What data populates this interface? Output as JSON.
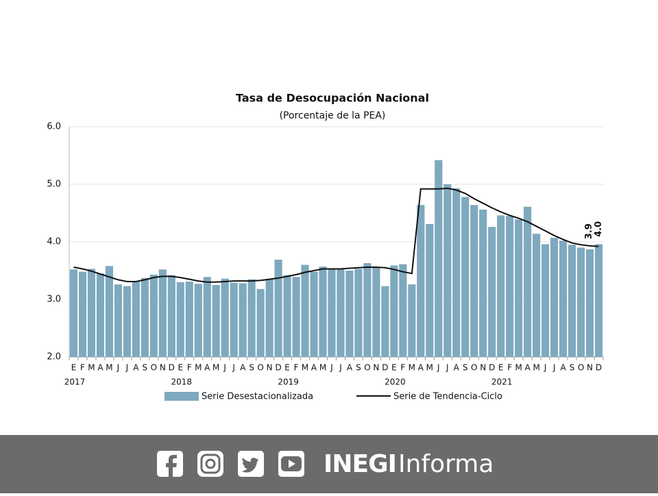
{
  "chart_data": {
    "type": "bar",
    "title": "Tasa de Desocupación Nacional",
    "subtitle": "(Porcentaje de la PEA)",
    "categories": [
      "E",
      "F",
      "M",
      "A",
      "M",
      "J",
      "J",
      "A",
      "S",
      "O",
      "N",
      "D",
      "E",
      "F",
      "M",
      "A",
      "M",
      "J",
      "J",
      "A",
      "S",
      "O",
      "N",
      "D",
      "E",
      "F",
      "M",
      "A",
      "M",
      "J",
      "J",
      "A",
      "S",
      "O",
      "N",
      "D",
      "E",
      "F",
      "M",
      "A",
      "M",
      "J",
      "J",
      "A",
      "S",
      "O",
      "N",
      "D",
      "E",
      "F",
      "M",
      "A",
      "M",
      "J",
      "J",
      "A",
      "S",
      "O",
      "N",
      "D"
    ],
    "year_labels": [
      "2017",
      "2018",
      "2019",
      "2020",
      "2021"
    ],
    "series": [
      {
        "name": "Serie Desestacionalizada",
        "type": "bar",
        "color": "#7ea9be",
        "values": [
          3.52,
          3.48,
          3.53,
          3.45,
          3.58,
          3.26,
          3.23,
          3.31,
          3.37,
          3.43,
          3.52,
          3.42,
          3.3,
          3.31,
          3.27,
          3.39,
          3.25,
          3.36,
          3.29,
          3.28,
          3.35,
          3.18,
          3.35,
          3.69,
          3.42,
          3.39,
          3.6,
          3.48,
          3.57,
          3.53,
          3.53,
          3.5,
          3.53,
          3.63,
          3.56,
          3.23,
          3.59,
          3.61,
          3.26,
          4.64,
          4.31,
          5.42,
          5.0,
          4.93,
          4.78,
          4.64,
          4.56,
          4.26,
          4.46,
          4.45,
          4.39,
          4.61,
          4.14,
          3.96,
          4.07,
          4.02,
          3.95,
          3.9,
          3.87,
          3.96
        ],
        "value_labels": [
          null,
          null,
          null,
          null,
          null,
          null,
          null,
          null,
          null,
          null,
          null,
          null,
          null,
          null,
          null,
          null,
          null,
          null,
          null,
          null,
          null,
          null,
          null,
          null,
          null,
          null,
          null,
          null,
          null,
          null,
          null,
          null,
          null,
          null,
          null,
          null,
          null,
          null,
          null,
          null,
          null,
          null,
          null,
          null,
          null,
          null,
          null,
          null,
          null,
          null,
          null,
          null,
          null,
          null,
          null,
          null,
          null,
          null,
          null,
          "4.0"
        ]
      },
      {
        "name": "Serie de Tendencia-Ciclo",
        "type": "line",
        "color": "#111111",
        "values": [
          3.56,
          3.53,
          3.49,
          3.44,
          3.39,
          3.34,
          3.31,
          3.31,
          3.34,
          3.38,
          3.4,
          3.4,
          3.38,
          3.35,
          3.32,
          3.3,
          3.3,
          3.31,
          3.32,
          3.32,
          3.32,
          3.33,
          3.35,
          3.37,
          3.4,
          3.43,
          3.47,
          3.5,
          3.53,
          3.53,
          3.53,
          3.54,
          3.55,
          3.56,
          3.56,
          3.55,
          3.52,
          3.48,
          3.45,
          4.92,
          4.92,
          4.92,
          4.93,
          4.9,
          4.84,
          4.75,
          4.67,
          4.59,
          4.52,
          4.46,
          4.41,
          4.35,
          4.27,
          4.19,
          4.11,
          4.04,
          3.98,
          3.95,
          3.93,
          3.92
        ],
        "value_labels": [
          null,
          null,
          null,
          null,
          null,
          null,
          null,
          null,
          null,
          null,
          null,
          null,
          null,
          null,
          null,
          null,
          null,
          null,
          null,
          null,
          null,
          null,
          null,
          null,
          null,
          null,
          null,
          null,
          null,
          null,
          null,
          null,
          null,
          null,
          null,
          null,
          null,
          null,
          null,
          null,
          null,
          null,
          null,
          null,
          null,
          null,
          null,
          null,
          null,
          null,
          null,
          null,
          null,
          null,
          null,
          null,
          null,
          null,
          null,
          "3.9"
        ]
      }
    ],
    "ylim": [
      2,
      6
    ],
    "yticks": [
      {
        "value": 2,
        "label": "2.0"
      },
      {
        "value": 3,
        "label": "3.0"
      },
      {
        "value": 4,
        "label": "4.0"
      },
      {
        "value": 5,
        "label": "5.0"
      },
      {
        "value": 6,
        "label": "6.0"
      }
    ],
    "grid": true,
    "legend": "bottom"
  },
  "footer": {
    "brand_bold": "INEGI",
    "brand": "Informa"
  }
}
